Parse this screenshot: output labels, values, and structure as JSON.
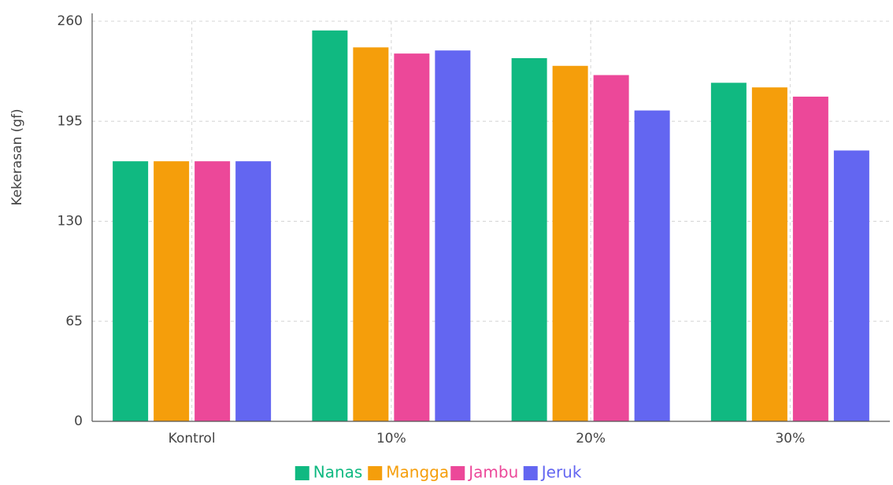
{
  "chart_data": {
    "type": "bar",
    "y_label": "Kekerasan (gf)",
    "categories": [
      "Kontrol",
      "10%",
      "20%",
      "30%"
    ],
    "series": [
      {
        "name": "Nanas",
        "color": "#10b981",
        "values": [
          169,
          254,
          236,
          220
        ]
      },
      {
        "name": "Mangga",
        "color": "#f59e0b",
        "values": [
          169,
          243,
          231,
          217
        ]
      },
      {
        "name": "Jambu",
        "color": "#ec4899",
        "values": [
          169,
          239,
          225,
          211
        ]
      },
      {
        "name": "Jeruk",
        "color": "#6366f1",
        "values": [
          169,
          241,
          202,
          176
        ]
      }
    ],
    "ylim": [
      0,
      260
    ],
    "yticks": [
      0,
      65,
      130,
      195,
      260
    ],
    "grid": true,
    "legend": "bottom"
  }
}
